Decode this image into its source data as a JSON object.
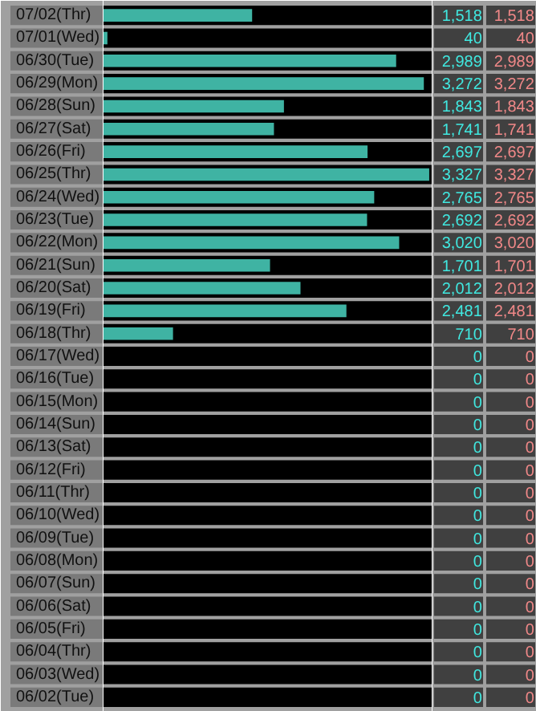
{
  "chart_data": {
    "type": "bar",
    "orientation": "horizontal",
    "color": "#3fb3a3",
    "value_labels": [
      "1,518",
      "40",
      "2,989",
      "3,272",
      "1,843",
      "1,741",
      "2,697",
      "3,327",
      "2,765",
      "2,692",
      "3,020",
      "1,701",
      "2,012",
      "2,481",
      "710",
      "0",
      "0",
      "0",
      "0",
      "0",
      "0",
      "0",
      "0",
      "0",
      "0",
      "0",
      "0",
      "0",
      "0",
      "0",
      "0"
    ],
    "categories": [
      "07/02(Thr)",
      "07/01(Wed)",
      "06/30(Tue)",
      "06/29(Mon)",
      "06/28(Sun)",
      "06/27(Sat)",
      "06/26(Fri)",
      "06/25(Thr)",
      "06/24(Wed)",
      "06/23(Tue)",
      "06/22(Mon)",
      "06/21(Sun)",
      "06/20(Sat)",
      "06/19(Fri)",
      "06/18(Thr)",
      "06/17(Wed)",
      "06/16(Tue)",
      "06/15(Mon)",
      "06/14(Sun)",
      "06/13(Sat)",
      "06/12(Fri)",
      "06/11(Thr)",
      "06/10(Wed)",
      "06/09(Tue)",
      "06/08(Mon)",
      "06/07(Sun)",
      "06/06(Sat)",
      "06/05(Fri)",
      "06/04(Thr)",
      "06/03(Wed)",
      "06/02(Tue)"
    ],
    "values": [
      1518,
      40,
      2989,
      3272,
      1843,
      1741,
      2697,
      3327,
      2765,
      2692,
      3020,
      1701,
      2012,
      2481,
      710,
      0,
      0,
      0,
      0,
      0,
      0,
      0,
      0,
      0,
      0,
      0,
      0,
      0,
      0,
      0,
      0
    ]
  }
}
